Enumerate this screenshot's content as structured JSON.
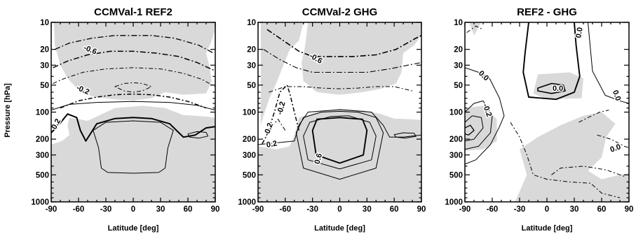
{
  "figure": {
    "ylabel": "Pressure [hPa]"
  },
  "chart_data": [
    {
      "type": "contour",
      "title": "CCMVal-1 REF2",
      "xlabel": "Latitude [deg]",
      "ylabel": "Pressure [hPa]",
      "xlim": [
        -90,
        90
      ],
      "ylim": [
        1000,
        10
      ],
      "yscale": "log",
      "x_ticks": [
        -90,
        -60,
        -30,
        0,
        30,
        60,
        90
      ],
      "y_ticks": [
        10,
        20,
        30,
        50,
        100,
        200,
        300,
        500,
        1000
      ],
      "contour_labels": [
        "-0.6",
        "-0.2",
        "0.2"
      ],
      "shading": "gray regions"
    },
    {
      "type": "contour",
      "title": "CCMVal-2 GHG",
      "xlabel": "Latitude [deg]",
      "xlim": [
        -90,
        90
      ],
      "ylim": [
        1000,
        10
      ],
      "yscale": "log",
      "x_ticks": [
        -90,
        -60,
        -30,
        0,
        30,
        60,
        90
      ],
      "y_ticks": [
        10,
        20,
        30,
        50,
        100,
        200,
        300,
        500,
        1000
      ],
      "contour_labels": [
        "-0.6",
        "-0.2",
        "-0.2",
        "0.2",
        "0.6"
      ],
      "shading": "gray regions"
    },
    {
      "type": "contour",
      "title": "REF2 - GHG",
      "xlabel": "Latitude [deg]",
      "xlim": [
        -90,
        90
      ],
      "ylim": [
        1000,
        10
      ],
      "yscale": "log",
      "x_ticks": [
        -90,
        -60,
        -30,
        0,
        30,
        60,
        90
      ],
      "y_ticks": [
        10,
        20,
        30,
        50,
        100,
        200,
        300,
        500,
        1000
      ],
      "contour_labels": [
        "0.0",
        "0.0",
        "-0.2",
        "0.0",
        "0.0",
        "0.0"
      ],
      "shading": "gray regions"
    }
  ],
  "colors": {
    "shade": "#d9d9d9",
    "line": "#000000"
  }
}
